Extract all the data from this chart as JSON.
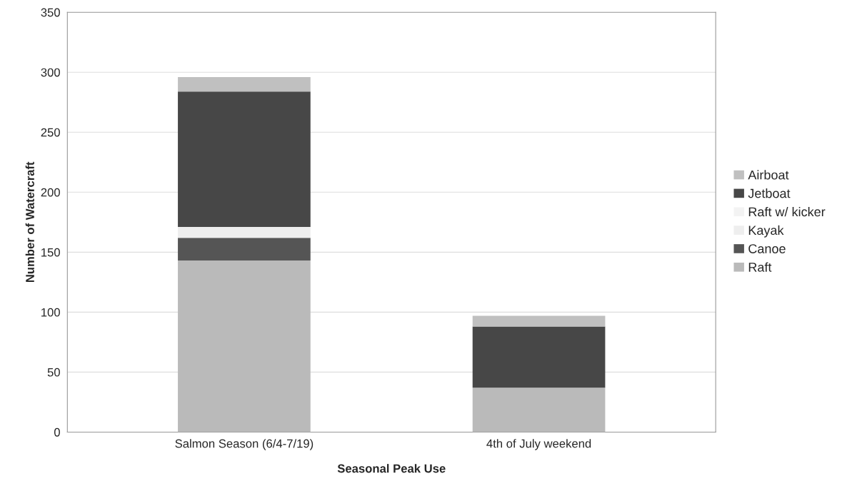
{
  "chart_data": {
    "type": "bar",
    "stacked": true,
    "xlabel": "Seasonal Peak Use",
    "ylabel": "Number of Watercraft",
    "categories": [
      "Salmon Season (6/4-7/19)",
      "4th of July weekend"
    ],
    "series": [
      {
        "name": "Raft",
        "color": "#bababa",
        "values": [
          143,
          37
        ]
      },
      {
        "name": "Canoe",
        "color": "#555555",
        "values": [
          19,
          0
        ]
      },
      {
        "name": "Kayak",
        "color": "#eeeeee",
        "values": [
          9,
          0
        ]
      },
      {
        "name": "Raft w/ kicker",
        "color": "#f3f3f3",
        "values": [
          0,
          0
        ]
      },
      {
        "name": "Jetboat",
        "color": "#474747",
        "values": [
          113,
          51
        ]
      },
      {
        "name": "Airboat",
        "color": "#c0c0c0",
        "values": [
          12,
          9
        ]
      }
    ],
    "ylim": [
      0,
      350
    ],
    "yticks": [
      0,
      50,
      100,
      150,
      200,
      250,
      300,
      350
    ],
    "grid": "y",
    "legend": "right"
  }
}
